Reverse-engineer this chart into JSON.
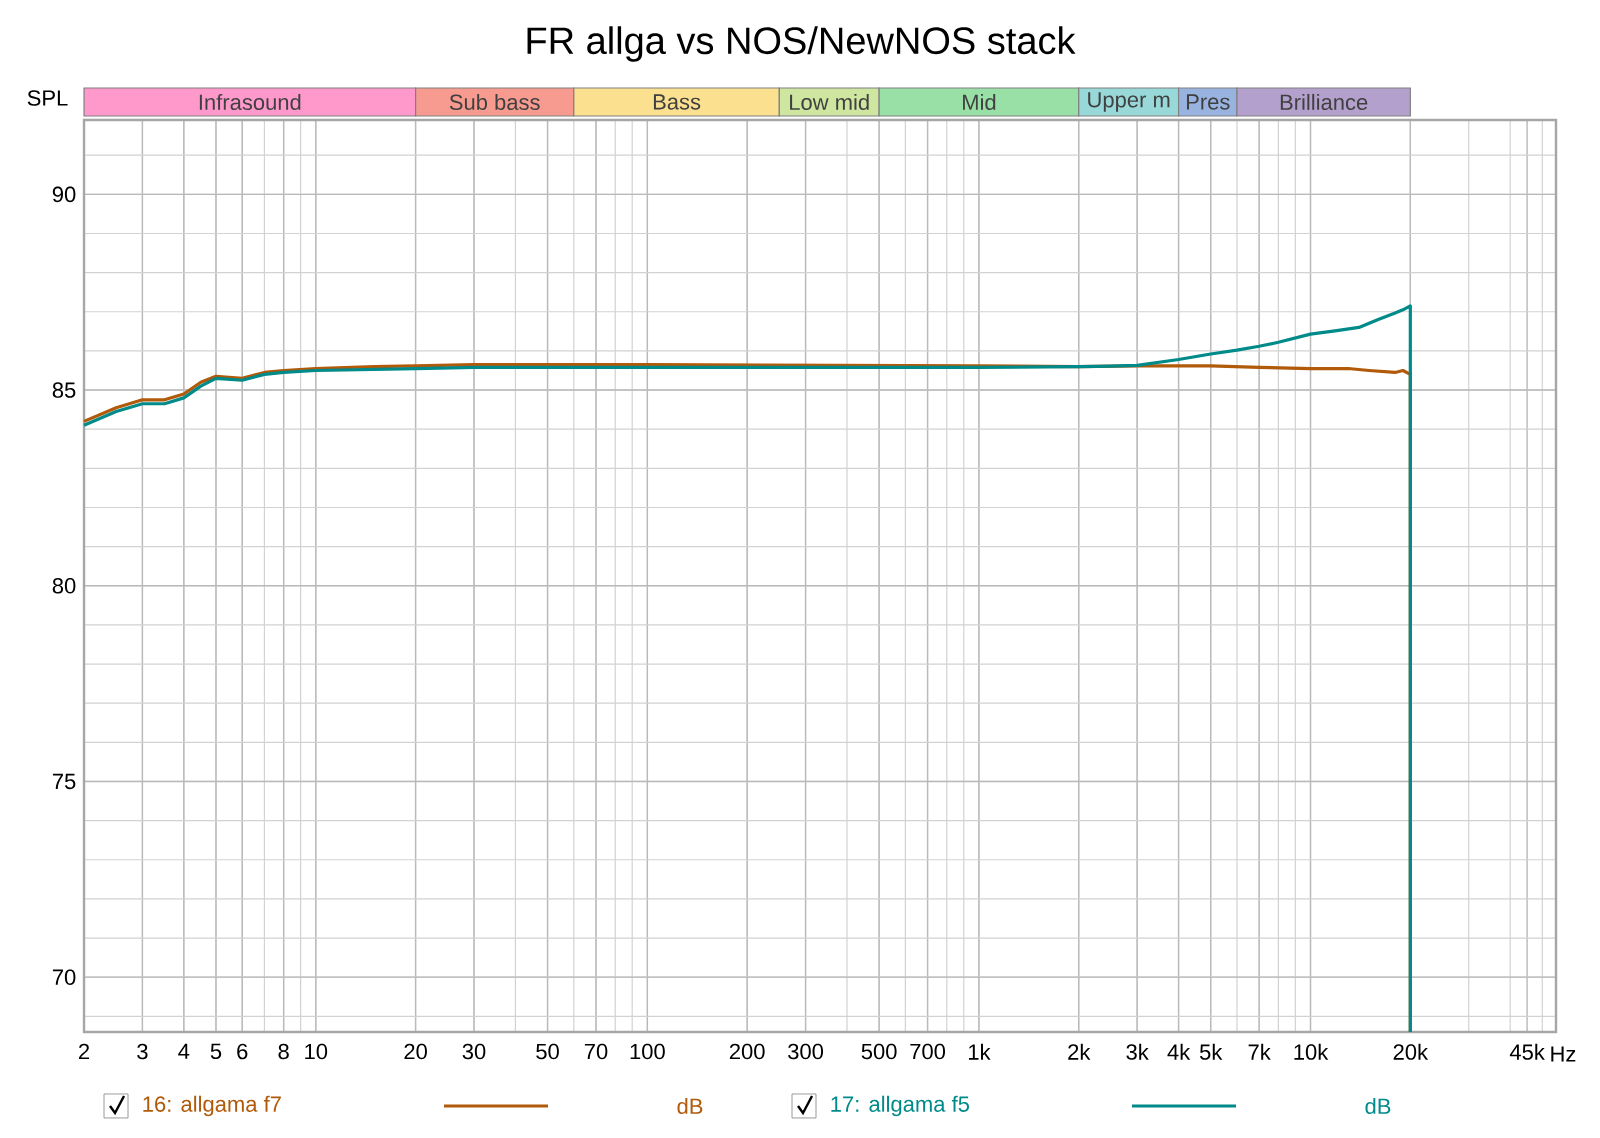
{
  "chart_data": [
    {
      "type": "bar",
      "orientation": "horizontal",
      "log": "x",
      "xlim": [
        2,
        55000
      ],
      "tick_labels": false,
      "categories": [
        null
      ],
      "series": [
        {
          "name": "Infrasound",
          "color": "#ff99cc",
          "base": [
            2
          ],
          "values": [
            18
          ]
        },
        {
          "name": "Sub bass",
          "color": "#f79a8f",
          "base": [
            20
          ],
          "values": [
            40
          ]
        },
        {
          "name": "Bass",
          "color": "#fbe08f",
          "base": [
            60
          ],
          "values": [
            190
          ]
        },
        {
          "name": "Low mid",
          "color": "#cfe6a0",
          "base": [
            250
          ],
          "values": [
            250
          ]
        },
        {
          "name": "Mid",
          "color": "#99e0a6",
          "base": [
            500
          ],
          "values": [
            1500
          ]
        },
        {
          "name": "Upper m",
          "color": "#99d8d8",
          "base": [
            2000
          ],
          "values": [
            2000
          ]
        },
        {
          "name": "Pres",
          "color": "#99b3e0",
          "base": [
            4000
          ],
          "values": [
            2000
          ]
        },
        {
          "name": "Brilliance",
          "color": "#b3a0cc",
          "base": [
            6000
          ],
          "values": [
            14000
          ]
        }
      ]
    },
    {
      "type": "line",
      "title": "FR allga vs NOS/NewNOS stack",
      "ylabel": "SPL",
      "xlabel": "Hz",
      "log": "x",
      "grid": true,
      "legend": "bottom",
      "xlim": [
        2,
        55000
      ],
      "ylim": [
        68.6,
        91.9
      ],
      "xticks": [
        2,
        3,
        4,
        5,
        6,
        8,
        10,
        20,
        30,
        50,
        70,
        100,
        200,
        300,
        500,
        700,
        {
          "value": 1000,
          "label": "1k"
        },
        {
          "value": 2000,
          "label": "2k"
        },
        {
          "value": 3000,
          "label": "3k"
        },
        {
          "value": 4000,
          "label": "4k"
        },
        {
          "value": 5000,
          "label": "5k"
        },
        {
          "value": 7000,
          "label": "7k"
        },
        {
          "value": 10000,
          "label": "10k"
        },
        {
          "value": 20000,
          "label": "20k"
        },
        {
          "value": 45000,
          "label": "45k"
        }
      ],
      "yticks": [
        70,
        75,
        80,
        85,
        90
      ],
      "annotations": [
        "dB",
        "dB"
      ],
      "series": [
        {
          "name": "16: allgama f7",
          "color": "#b05a0a",
          "x": [
            2,
            2.5,
            3,
            3.5,
            4,
            4.5,
            5,
            6,
            7,
            8,
            10,
            15,
            20,
            30,
            100,
            1000,
            2000,
            3000,
            5000,
            7000,
            10000,
            13000,
            15000,
            18000,
            19000,
            20000,
            20000
          ],
          "values": [
            84.2,
            84.55,
            84.75,
            84.75,
            84.9,
            85.2,
            85.35,
            85.3,
            85.45,
            85.5,
            85.55,
            85.6,
            85.62,
            85.65,
            85.65,
            85.62,
            85.6,
            85.62,
            85.62,
            85.58,
            85.55,
            85.55,
            85.5,
            85.45,
            85.5,
            85.4,
            68.6
          ]
        },
        {
          "name": "17: allgama f5",
          "color": "#008a8a",
          "x": [
            2,
            2.5,
            3,
            3.5,
            4,
            4.5,
            5,
            6,
            7,
            8,
            10,
            20,
            30,
            100,
            1000,
            2000,
            2500,
            3000,
            4000,
            5000,
            6000,
            7000,
            8000,
            10000,
            12000,
            14000,
            16000,
            18000,
            19000,
            20000,
            20000
          ],
          "values": [
            84.1,
            84.45,
            84.65,
            84.65,
            84.8,
            85.1,
            85.3,
            85.25,
            85.4,
            85.45,
            85.5,
            85.55,
            85.58,
            85.58,
            85.58,
            85.6,
            85.61,
            85.63,
            85.78,
            85.92,
            86.02,
            86.12,
            86.22,
            86.43,
            86.52,
            86.6,
            86.8,
            86.97,
            87.05,
            87.15,
            68.6
          ]
        }
      ]
    }
  ]
}
